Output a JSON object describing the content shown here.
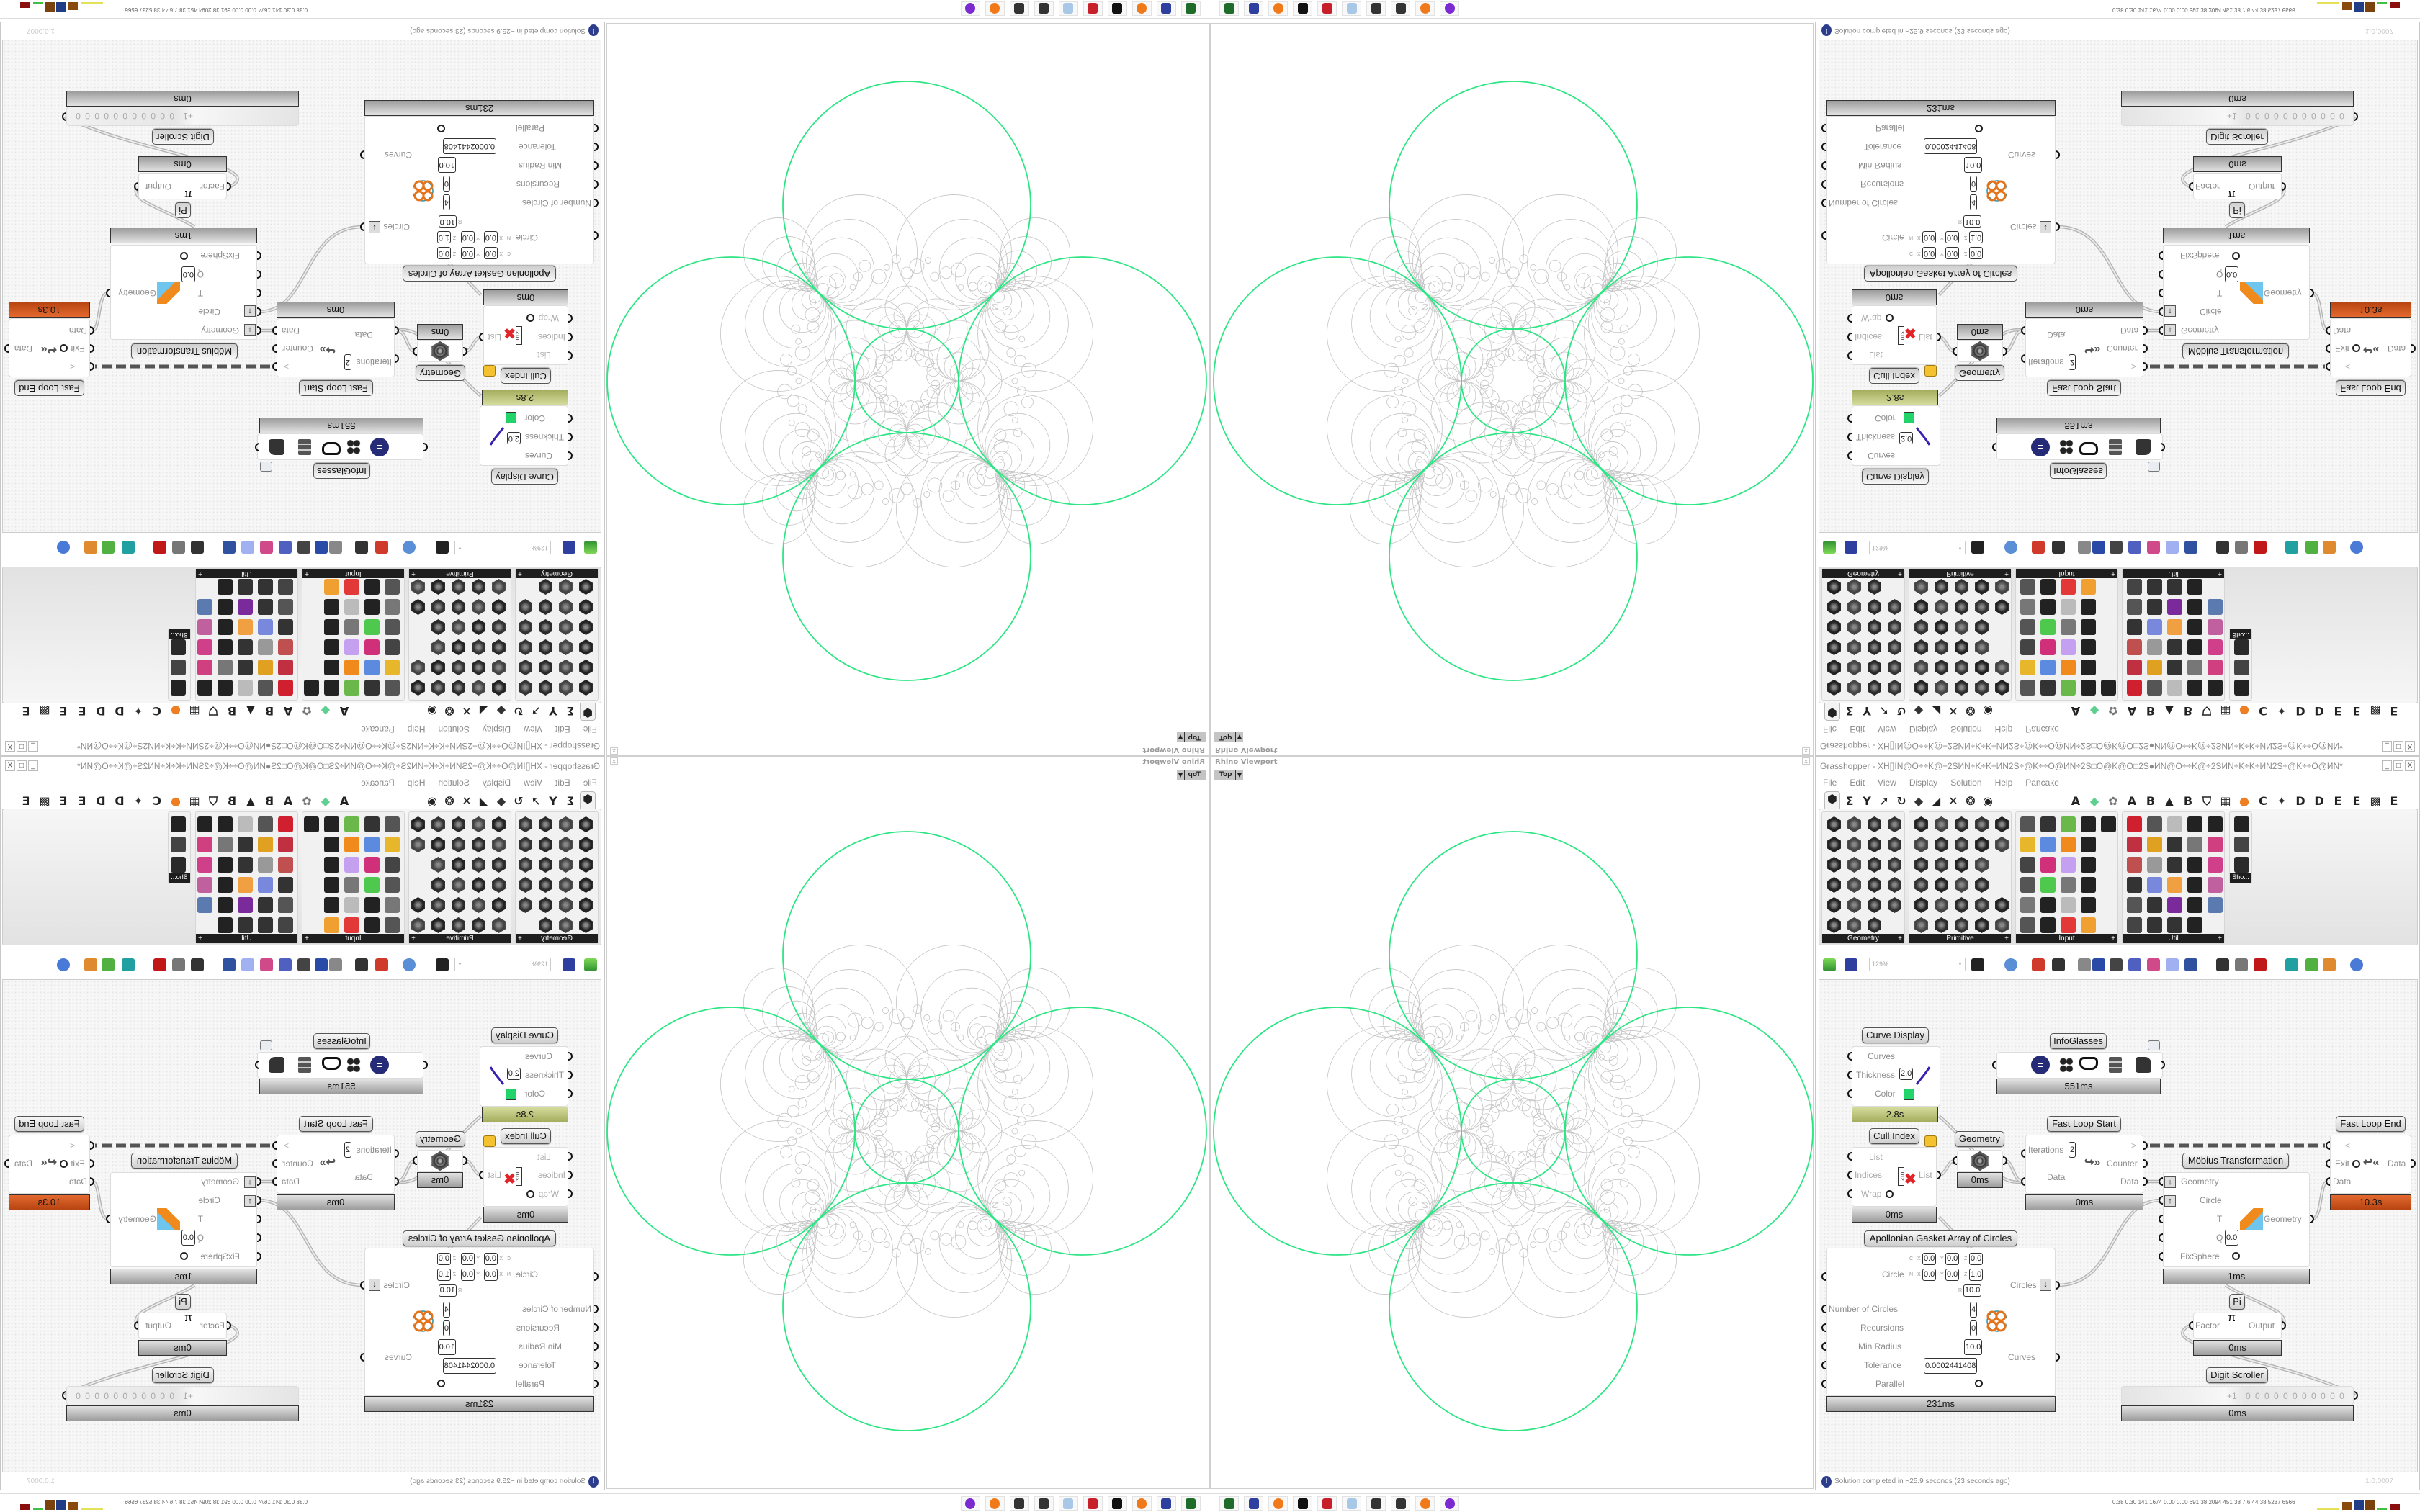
{
  "viewport": {
    "title": "Rhino Viewport",
    "view": "Top",
    "close": "x"
  },
  "gh": {
    "title": "Grasshopper - XH[]IN@O÷÷K@÷2SИN÷K÷K÷ИN2S÷@K÷÷O@ИN÷2S□O@K@O□2S●ИN@O÷÷K@÷2SИN÷K÷K÷ИN2S÷@K÷÷O@ИN*",
    "window_buttons": [
      "_",
      "□",
      "X"
    ],
    "menu": [
      "File",
      "Edit",
      "View",
      "Display",
      "Solution",
      "Help",
      "Pancake"
    ],
    "tabs": [
      "⬢",
      "Σ",
      "Y",
      "➚",
      "↻",
      "◆",
      "◢",
      "✕",
      "❂",
      "◉",
      "A",
      "◆",
      "✿",
      "A",
      "B",
      "▲",
      "B",
      "⛉",
      "▦",
      "●",
      "C",
      "✦",
      "D",
      "D",
      "E",
      "E",
      "▩",
      "E"
    ],
    "panels": [
      {
        "label": "Geometry",
        "expand": "+"
      },
      {
        "label": "Primitive",
        "expand": "+"
      },
      {
        "label": "Input",
        "expand": "+"
      },
      {
        "label": "Util",
        "expand": "+"
      },
      {
        "label": "Sho..."
      }
    ],
    "zoom": "129%",
    "status": "Solution completed in ~25.9 seconds (23 seconds ago)",
    "status_icon": "!",
    "version": "1.0.0007"
  },
  "components": {
    "curve_display": {
      "label": "Curve Display",
      "inputs": [
        "Curves",
        "Thickness",
        "Color"
      ],
      "thickness": "2.0",
      "timer": "2.8s"
    },
    "infoglasses": {
      "label": "InfoGlasses",
      "timer": "551ms"
    },
    "cull_index": {
      "label": "Cull Index",
      "inputs": [
        "List",
        "Indices",
        "Wrap"
      ],
      "output": "List",
      "icon_digits": "012",
      "timer": "0ms"
    },
    "geometry": {
      "label": "Geometry",
      "timer": "0ms"
    },
    "fast_loop_start": {
      "label": "Fast Loop Start",
      "inputs": [
        "Iterations",
        "Data"
      ],
      "iterations": "2",
      "outputs": [
        ">",
        "Counter",
        "Data"
      ],
      "timer": "0ms"
    },
    "fast_loop_end": {
      "label": "Fast Loop End",
      "inputs": [
        "<",
        "Exit",
        "Data"
      ],
      "output": "Data",
      "timer": "10.3s"
    },
    "mobius": {
      "label": "Möbius Transformation",
      "inputs": [
        "Geometry",
        "Circle",
        "T",
        "Q",
        "FixSphere"
      ],
      "q": "0.0",
      "output": "Geometry",
      "timer": "1ms"
    },
    "apollonian": {
      "label": "Apollonian Gasket Array of Circles",
      "circle_label": "Circle",
      "c_row": {
        "tag": "C",
        "x": "0.0",
        "y": "0.0",
        "z": "0.0"
      },
      "n_row": {
        "tag": "N",
        "x": "0.0",
        "y": "0.0",
        "z": "1.0"
      },
      "r_row": {
        "tag": "R",
        "value": "10.0"
      },
      "axis_labels": [
        "X",
        "Y",
        "Z"
      ],
      "inputs": [
        "Number of Circles",
        "Recursions",
        "Min Radius",
        "Tolerance",
        "Parallel"
      ],
      "values": [
        "4",
        "0",
        "10.0",
        "0.0002441408"
      ],
      "outputs": [
        "Circles",
        "Curves"
      ],
      "timer": "231ms"
    },
    "pi": {
      "label": "Pi",
      "input": "Factor",
      "symbol": "π",
      "output": "Output",
      "timer": "0ms"
    },
    "digit_scroller": {
      "label": "Digit Scroller",
      "sign": "+1",
      "digits": "0 0 0 0 0 0 0 0 0 0 0",
      "timer": "0ms"
    }
  },
  "taskbar": {
    "apps": [
      "terminal-icon",
      "floppy-64-icon",
      "firefox-icon",
      "inkscape-icon",
      "red-gear-icon",
      "notepad-icon",
      "puzzle-icon",
      "puzzle-icon",
      "firefox-icon",
      "purple-avatar-icon"
    ],
    "stats": "0.38 0.30 141 1674 0.00 0.00 691  38  2094 451  38  7.6  44  38  5237 6566"
  },
  "colors": {
    "circle_green": "#2ee584",
    "gasket_gray": "#c4c4c4",
    "loop_end_timer": "#d2561e",
    "curve_display_timer": "#b9c27a",
    "swatch": "#22d46a",
    "info_icon": "#2d3d8e"
  }
}
